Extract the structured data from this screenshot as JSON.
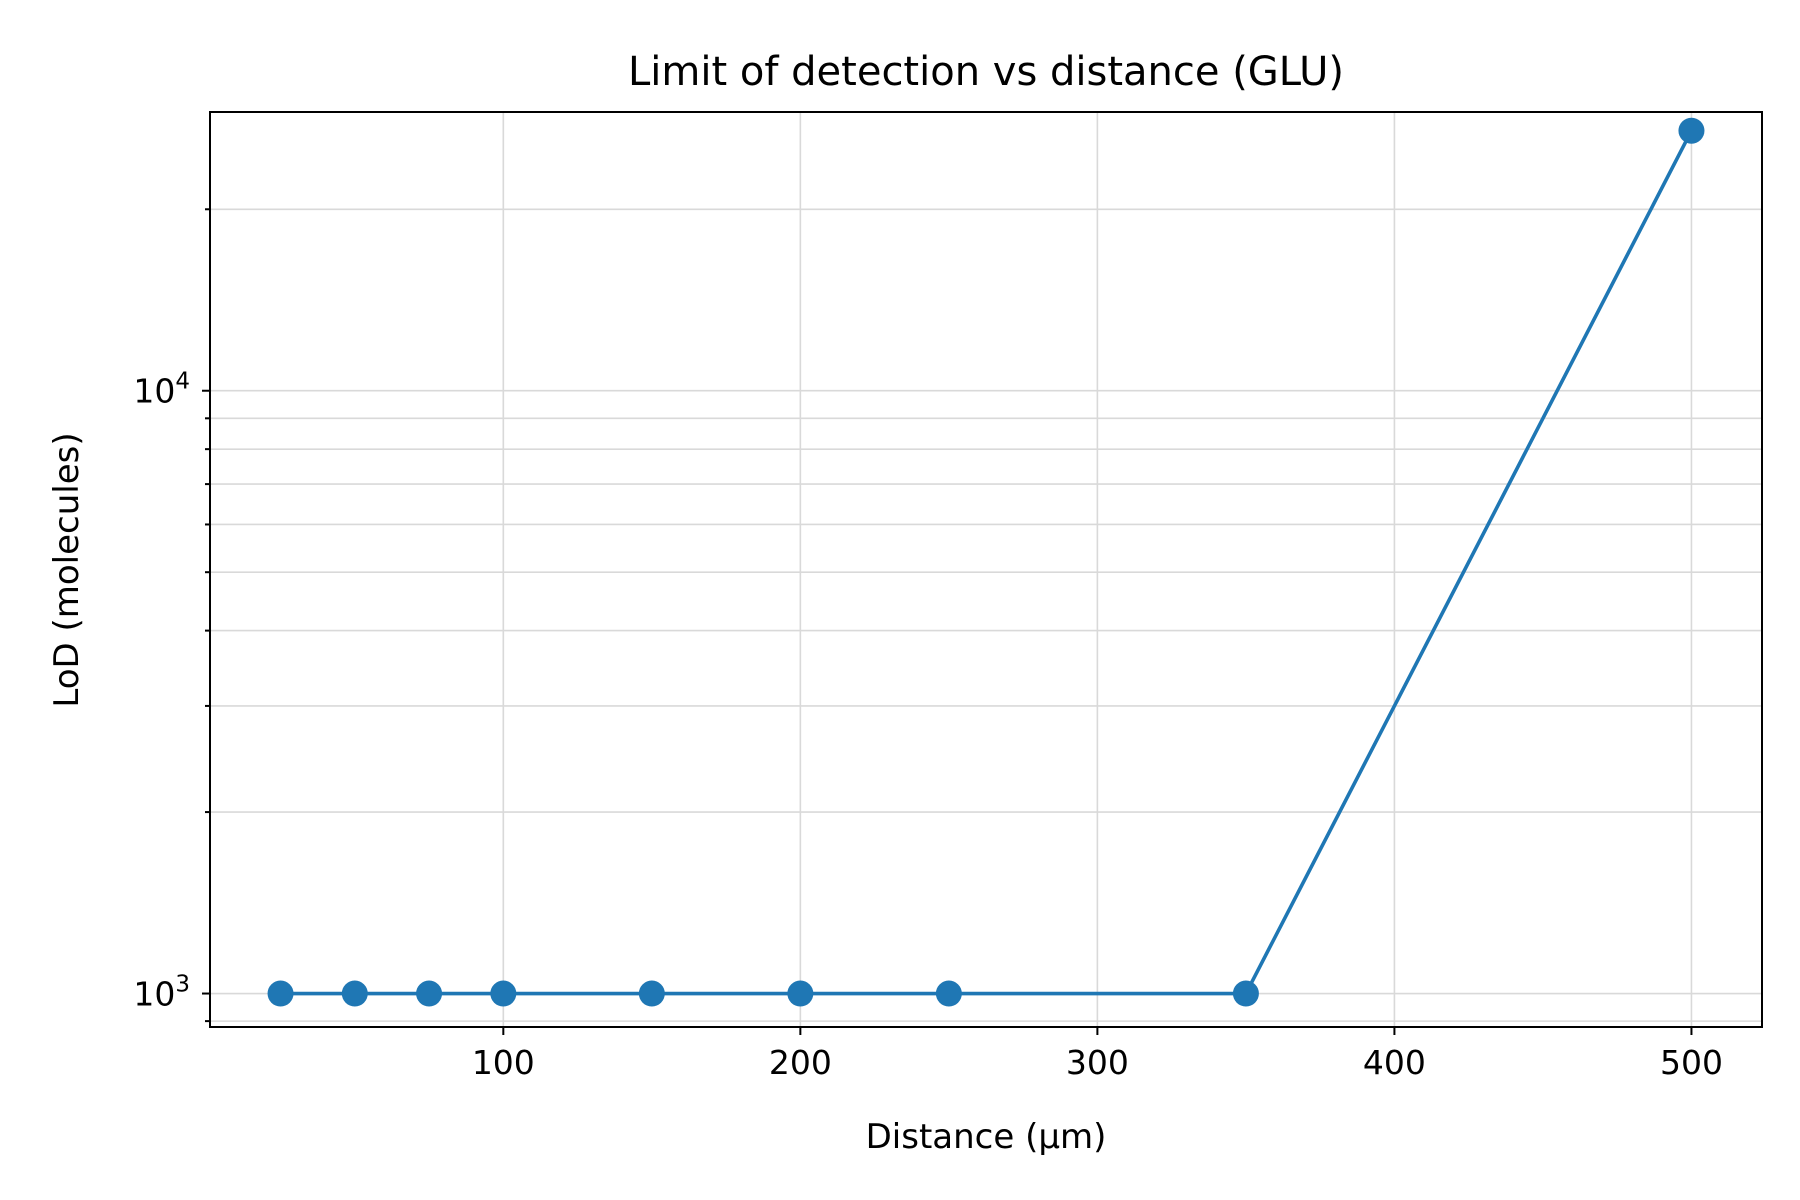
{
  "chart_data": {
    "type": "line",
    "title": "Limit of detection vs distance (GLU)",
    "xlabel": "Distance (µm)",
    "ylabel": "LoD  (molecules)",
    "x_scale": "linear",
    "y_scale": "log",
    "xlim": [
      1.25,
      523.75
    ],
    "ylim": [
      880,
      29000
    ],
    "x_ticks": [
      100,
      200,
      300,
      400,
      500
    ],
    "y_major_ticks": [
      {
        "value": 1000,
        "base": "10",
        "exp": "3"
      },
      {
        "value": 10000,
        "base": "10",
        "exp": "4"
      }
    ],
    "grid": true,
    "legend": "none",
    "series": [
      {
        "color": "#1f77b4",
        "marker": "circle",
        "x": [
          25,
          50,
          75,
          100,
          150,
          200,
          250,
          350,
          500
        ],
        "y": [
          1000,
          1000,
          1000,
          1000,
          1000,
          1000,
          1000,
          1000,
          27000
        ]
      }
    ]
  }
}
